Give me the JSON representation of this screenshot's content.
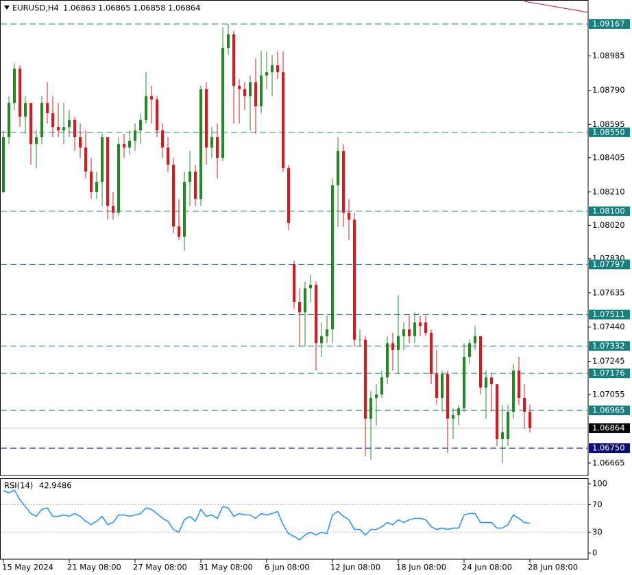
{
  "header": {
    "symbol": "EURUSD,H4",
    "ohlc": [
      1.06863,
      1.06865,
      1.06858,
      1.06864
    ]
  },
  "chart_data": [
    {
      "type": "candlestick",
      "categories": [
        "15 May 2024",
        null,
        null,
        null,
        null,
        null,
        null,
        null,
        null,
        null,
        null,
        null,
        "21 May 08:00",
        null,
        null,
        null,
        null,
        null,
        null,
        null,
        null,
        null,
        null,
        null,
        "27 May 08:00",
        null,
        null,
        null,
        null,
        null,
        null,
        null,
        null,
        null,
        null,
        null,
        "31 May 08:00",
        null,
        null,
        null,
        null,
        null,
        null,
        null,
        null,
        null,
        null,
        null,
        "6 Jun 08:00",
        null,
        null,
        null,
        null,
        null,
        null,
        null,
        null,
        null,
        null,
        null,
        "12 Jun 08:00",
        null,
        null,
        null,
        null,
        null,
        null,
        null,
        null,
        null,
        null,
        null,
        "18 Jun 08:00",
        null,
        null,
        null,
        null,
        null,
        null,
        null,
        null,
        null,
        null,
        null,
        "24 Jun 08:00",
        null,
        null,
        null,
        null,
        null,
        null,
        null,
        null,
        null,
        null,
        null,
        "28 Jun 08:00"
      ],
      "open": [
        1.08209,
        1.08522,
        1.08717,
        1.08913,
        1.08639,
        1.08717,
        1.08483,
        1.08522,
        1.08717,
        1.08659,
        1.0858,
        1.08561,
        1.0858,
        1.0862,
        1.08522,
        1.08463,
        1.08326,
        1.08209,
        1.08268,
        1.08522,
        1.08131,
        1.08092,
        1.08483,
        1.08463,
        1.08502,
        1.08561,
        1.0862,
        1.08756,
        1.08737,
        1.08561,
        1.08463,
        1.08365,
        1.08013,
        1.07955,
        1.08268,
        1.08326,
        1.0817,
        1.08796,
        1.08463,
        1.08522,
        1.08404,
        1.0903,
        1.09108,
        1.08815,
        1.08796,
        1.08756,
        1.08835,
        1.08698,
        1.08874,
        1.08893,
        1.08932,
        1.08893,
        1.08346,
        1.07798,
        1.07583,
        1.07524,
        1.07661,
        1.07681,
        1.07348,
        1.07388,
        1.07427,
        1.08248,
        1.08444,
        1.08092,
        1.08052,
        1.07368,
        1.07368,
        1.06918,
        1.07036,
        1.07056,
        1.07153,
        1.07348,
        1.07309,
        1.07388,
        1.07427,
        1.07388,
        1.07466,
        1.07466,
        1.07407,
        1.07173,
        1.07036,
        1.07173,
        1.06918,
        1.06938,
        1.06977,
        1.0727,
        1.07348,
        1.07388,
        1.07095,
        1.07153,
        1.07114,
        1.06801,
        1.06801,
        1.06957,
        1.07192,
        1.07036,
        1.06957
      ],
      "high": [
        1.08561,
        1.08756,
        1.08944,
        1.08932,
        1.08756,
        1.08717,
        1.08561,
        1.08756,
        1.08835,
        1.08756,
        1.08717,
        1.08717,
        1.08678,
        1.08639,
        1.086,
        1.08561,
        1.08404,
        1.08326,
        1.08541,
        1.08522,
        1.08209,
        1.08522,
        1.08541,
        1.08561,
        1.086,
        1.08659,
        1.08893,
        1.08815,
        1.08756,
        1.086,
        1.08522,
        1.08404,
        1.0817,
        1.08326,
        1.08444,
        1.08365,
        1.08815,
        1.08835,
        1.0858,
        1.086,
        1.09148,
        1.09167,
        1.09128,
        1.08854,
        1.08835,
        1.08874,
        1.08972,
        1.09011,
        1.09011,
        1.08991,
        1.09011,
        1.09011,
        1.08365,
        1.07818,
        1.07661,
        1.077,
        1.0774,
        1.077,
        1.07466,
        1.07505,
        1.08287,
        1.08522,
        1.08483,
        1.0817,
        1.08092,
        1.07427,
        1.07388,
        1.07075,
        1.07114,
        1.07192,
        1.07388,
        1.07407,
        1.07622,
        1.07466,
        1.07505,
        1.07524,
        1.07505,
        1.07505,
        1.07427,
        1.07309,
        1.07192,
        1.07192,
        1.06977,
        1.06997,
        1.07348,
        1.07368,
        1.07446,
        1.07388,
        1.07192,
        1.07173,
        1.07114,
        1.06997,
        1.06997,
        1.07231,
        1.0727,
        1.07114,
        1.06997
      ],
      "low": [
        1.08201,
        1.08483,
        1.08678,
        1.0858,
        1.08541,
        1.08365,
        1.08346,
        1.08483,
        1.086,
        1.08522,
        1.08522,
        1.08483,
        1.08522,
        1.08444,
        1.08404,
        1.08287,
        1.0817,
        1.0817,
        1.08131,
        1.08052,
        1.08052,
        1.08072,
        1.08404,
        1.08424,
        1.08444,
        1.08483,
        1.086,
        1.086,
        1.08522,
        1.08404,
        1.08326,
        1.07974,
        1.07935,
        1.07876,
        1.08131,
        1.08131,
        1.08131,
        1.08365,
        1.08404,
        1.08287,
        1.08385,
        1.08991,
        1.086,
        1.086,
        1.08678,
        1.08561,
        1.08541,
        1.08659,
        1.08796,
        1.08756,
        1.08854,
        1.08326,
        1.07994,
        1.07544,
        1.07329,
        1.07329,
        1.07583,
        1.07192,
        1.0727,
        1.07348,
        1.07348,
        1.08013,
        1.08013,
        1.07935,
        1.07329,
        1.07329,
        1.06703,
        1.06684,
        1.06879,
        1.07036,
        1.07114,
        1.07192,
        1.07173,
        1.07309,
        1.07348,
        1.07348,
        1.07388,
        1.07388,
        1.07114,
        1.06997,
        1.06957,
        1.06723,
        1.06801,
        1.06879,
        1.06957,
        1.07231,
        1.07309,
        1.07056,
        1.06918,
        1.06957,
        1.06762,
        1.06664,
        1.06762,
        1.06918,
        1.06997,
        1.0686,
        1.0684
      ],
      "close": [
        1.08522,
        1.08717,
        1.08913,
        1.08639,
        1.08717,
        1.08483,
        1.08522,
        1.08717,
        1.08659,
        1.0858,
        1.08561,
        1.0858,
        1.0862,
        1.08522,
        1.08463,
        1.08326,
        1.08209,
        1.08268,
        1.08522,
        1.08131,
        1.08092,
        1.08483,
        1.08463,
        1.08502,
        1.08561,
        1.0862,
        1.08756,
        1.08737,
        1.08561,
        1.08463,
        1.08365,
        1.08013,
        1.07955,
        1.08268,
        1.08326,
        1.0817,
        1.08796,
        1.08463,
        1.08522,
        1.08404,
        1.0903,
        1.09108,
        1.08815,
        1.08796,
        1.08756,
        1.08835,
        1.08698,
        1.08874,
        1.08893,
        1.08932,
        1.08893,
        1.08346,
        1.08033,
        1.07583,
        1.07524,
        1.07661,
        1.07681,
        1.07348,
        1.07388,
        1.07427,
        1.08248,
        1.08444,
        1.08092,
        1.08052,
        1.07368,
        1.07368,
        1.06918,
        1.07036,
        1.07056,
        1.07153,
        1.07348,
        1.07309,
        1.07388,
        1.07427,
        1.07388,
        1.07466,
        1.07446,
        1.07407,
        1.07173,
        1.07036,
        1.07173,
        1.06918,
        1.06938,
        1.06977,
        1.0727,
        1.07348,
        1.07388,
        1.07095,
        1.07153,
        1.07114,
        1.06801,
        1.0684,
        1.06957,
        1.07192,
        1.07036,
        1.06957,
        1.06864
      ],
      "up_color": "#1f8a1f",
      "down_color": "#e3141c",
      "ylim": [
        1.06594,
        1.09304
      ],
      "yticks": [
        1.08985,
        {
          "value": 1.0879,
          "label": "1.08790"
        },
        1.08595,
        1.08405,
        {
          "value": 1.0821,
          "label": "1.08210"
        },
        {
          "value": 1.0802,
          "label": "1.08020"
        },
        {
          "value": 1.0783,
          "label": "1.07830"
        },
        1.07635,
        {
          "value": 1.0744,
          "label": "1.07440"
        },
        1.07245,
        1.07055,
        1.06665
      ],
      "levels": [
        {
          "value": 1.09167,
          "color": "#17807e"
        },
        {
          "value": 1.0855,
          "label": "1.08550",
          "color": "#17807e"
        },
        {
          "value": 1.081,
          "label": "1.08100",
          "color": "#17807e"
        },
        {
          "value": 1.07797,
          "color": "#17807e"
        },
        {
          "value": 1.07511,
          "color": "#17807e"
        },
        {
          "value": 1.07332,
          "color": "#17807e"
        },
        {
          "value": 1.07176,
          "color": "#17807e"
        },
        {
          "value": 1.06965,
          "color": "#17807e"
        },
        {
          "value": 1.0675,
          "label": "1.06750",
          "color": "#0a0a78"
        }
      ],
      "last_price": 1.06864
    },
    {
      "type": "line",
      "name": "RSI(14)",
      "color": "#1e8fff",
      "values": [
        90,
        87,
        91,
        77,
        67,
        57,
        53,
        63,
        65,
        53,
        53,
        55,
        53,
        57,
        53,
        46,
        41,
        46,
        53,
        41,
        44,
        55,
        55,
        53,
        55,
        57,
        65,
        63,
        57,
        50,
        46,
        34,
        30,
        48,
        53,
        46,
        63,
        53,
        55,
        50,
        67,
        65,
        53,
        57,
        55,
        55,
        50,
        57,
        55,
        57,
        60,
        41,
        28,
        24,
        19,
        26,
        30,
        26,
        30,
        28,
        55,
        60,
        53,
        48,
        34,
        34,
        26,
        34,
        34,
        38,
        44,
        41,
        48,
        44,
        48,
        50,
        50,
        48,
        38,
        34,
        36,
        34,
        36,
        36,
        55,
        57,
        57,
        44,
        44,
        44,
        36,
        36,
        41,
        55,
        50,
        44,
        42.9486
      ],
      "ylim": [
        0,
        100
      ],
      "yticks": [
        100,
        70,
        30,
        0
      ],
      "levels": [
        70,
        30
      ]
    }
  ]
}
